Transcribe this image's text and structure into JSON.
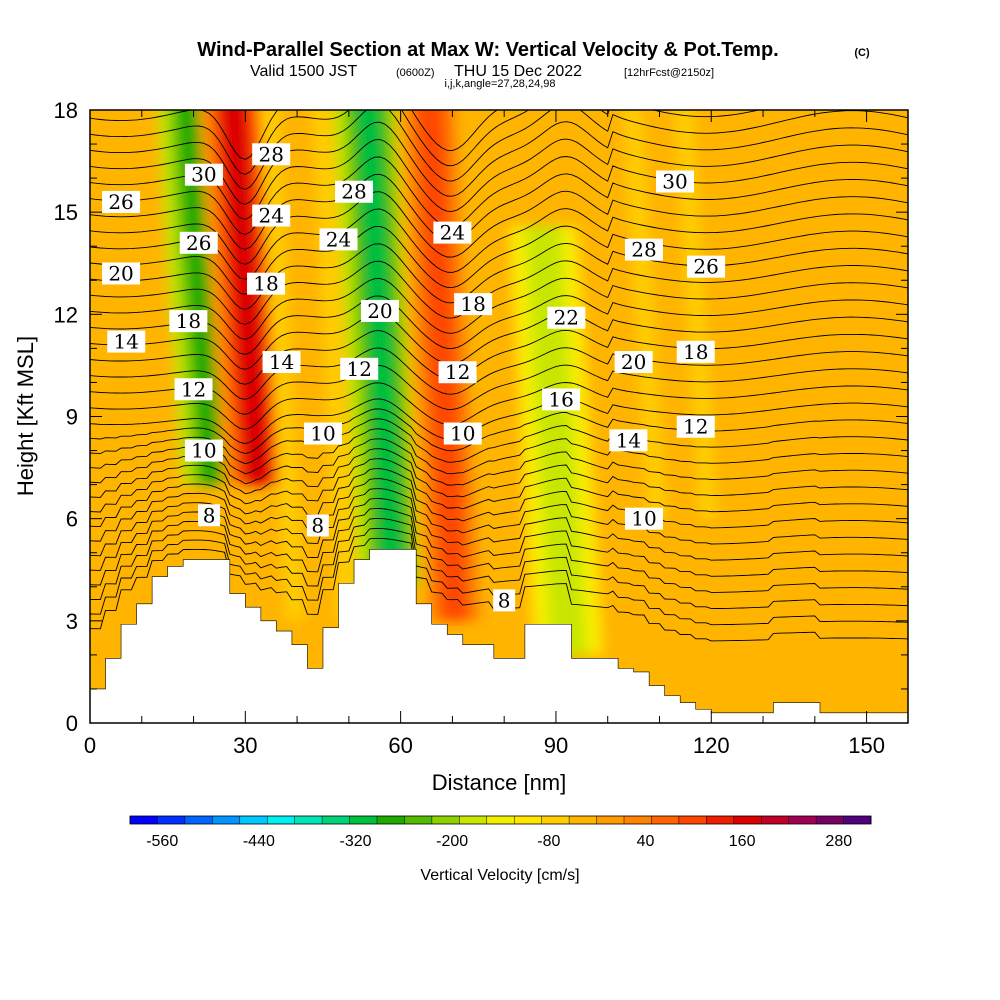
{
  "header": {
    "title": "Wind-Parallel Section at Max W: Vertical Velocity & Pot.Temp.",
    "copyright": "(C)",
    "valid_prefix": "Valid 1500 JST",
    "valid_utc": "(0600Z)",
    "valid_suffix": "THU 15 Dec 2022",
    "forecast": "[12hrFcst@2150z]",
    "indices": "i,j,k,angle=27,28,24,98"
  },
  "colors": {
    "terrain": "#ffffff",
    "background_fill": "#ffb400",
    "contour_line": "#000000",
    "palette": [
      "#0000ff",
      "#0030ff",
      "#0064ff",
      "#0096ff",
      "#00c8ff",
      "#00f0f0",
      "#00e6b4",
      "#00d278",
      "#00c040",
      "#1eaa00",
      "#50bb00",
      "#8cd200",
      "#c8e600",
      "#f0f000",
      "#ffe600",
      "#ffcd00",
      "#ffb400",
      "#ff9b00",
      "#ff8200",
      "#ff6400",
      "#ff4600",
      "#f01e00",
      "#dc0000",
      "#c00028",
      "#a00050",
      "#780064",
      "#50007d"
    ]
  },
  "chart_data": {
    "type": "heatmap",
    "title": "Wind-Parallel Section at Max W: Vertical Velocity & Pot.Temp.",
    "xlabel": "Distance [nm]",
    "ylabel": "Height [Kft MSL]",
    "xlim": [
      0,
      158
    ],
    "ylim": [
      0,
      18
    ],
    "x_ticks": [
      0,
      30,
      60,
      90,
      120,
      150
    ],
    "y_ticks": [
      0,
      3,
      6,
      9,
      12,
      15,
      18
    ],
    "colorbar": {
      "label": "Vertical Velocity [cm/s]",
      "min": -600,
      "max": 320,
      "step": 40,
      "tick_values": [
        -560,
        -440,
        -320,
        -200,
        -80,
        40,
        160,
        280
      ],
      "tick_labels": [
        "-560",
        "-440",
        "-320",
        "-200",
        "-80",
        "40",
        "160",
        "280"
      ]
    },
    "vertical_velocity_features": [
      {
        "x": 22,
        "height_range": [
          7,
          18
        ],
        "w": -240
      },
      {
        "x": 30,
        "height_range": [
          7,
          18
        ],
        "w": 300
      },
      {
        "x": 42,
        "height_range": [
          3,
          18
        ],
        "w": 60
      },
      {
        "x": 56,
        "height_range": [
          4,
          18
        ],
        "w": -260
      },
      {
        "x": 68,
        "height_range": [
          3,
          18
        ],
        "w": 200
      },
      {
        "x": 90,
        "height_range": [
          2,
          14
        ],
        "w": -100
      },
      {
        "x": 112,
        "height_range": [
          6,
          18
        ],
        "w": 60
      }
    ],
    "terrain": {
      "x": [
        0,
        3,
        6,
        9,
        12,
        15,
        18,
        21,
        24,
        27,
        30,
        33,
        36,
        39,
        42,
        45,
        48,
        51,
        54,
        57,
        60,
        63,
        66,
        69,
        72,
        75,
        78,
        81,
        84,
        87,
        90,
        93,
        96,
        99,
        102,
        105,
        108,
        111,
        114,
        117,
        120,
        123,
        126,
        129,
        132,
        135,
        138,
        141,
        144,
        147,
        150,
        153,
        156,
        158
      ],
      "height": [
        1.0,
        1.9,
        2.9,
        3.5,
        4.3,
        4.6,
        4.8,
        4.8,
        4.8,
        3.8,
        3.4,
        3.0,
        2.7,
        2.3,
        1.6,
        2.8,
        4.1,
        4.8,
        5.1,
        5.1,
        5.1,
        3.5,
        2.9,
        2.6,
        2.3,
        2.3,
        1.9,
        1.9,
        2.9,
        2.9,
        2.9,
        1.9,
        1.9,
        1.9,
        1.6,
        1.5,
        1.1,
        0.8,
        0.6,
        0.4,
        0.3,
        0.3,
        0.3,
        0.3,
        0.6,
        0.6,
        0.6,
        0.3,
        0.3,
        0.3,
        0.3,
        0.3,
        0.3,
        0.3
      ]
    },
    "potential_temperature_contours": {
      "units": "deg",
      "labels": [
        {
          "text": "30",
          "x": 22,
          "y": 16.1
        },
        {
          "text": "28",
          "x": 35,
          "y": 16.7
        },
        {
          "text": "26",
          "x": 6,
          "y": 15.3
        },
        {
          "text": "24",
          "x": 35,
          "y": 14.9
        },
        {
          "text": "28",
          "x": 51,
          "y": 15.6
        },
        {
          "text": "24",
          "x": 48,
          "y": 14.2
        },
        {
          "text": "26",
          "x": 21,
          "y": 14.1
        },
        {
          "text": "20",
          "x": 6,
          "y": 13.2
        },
        {
          "text": "18",
          "x": 34,
          "y": 12.9
        },
        {
          "text": "20",
          "x": 56,
          "y": 12.1
        },
        {
          "text": "24",
          "x": 70,
          "y": 14.4
        },
        {
          "text": "30",
          "x": 113,
          "y": 15.9
        },
        {
          "text": "28",
          "x": 107,
          "y": 13.9
        },
        {
          "text": "26",
          "x": 119,
          "y": 13.4
        },
        {
          "text": "22",
          "x": 92,
          "y": 11.9
        },
        {
          "text": "18",
          "x": 74,
          "y": 12.3
        },
        {
          "text": "18",
          "x": 117,
          "y": 10.9
        },
        {
          "text": "14",
          "x": 7,
          "y": 11.2
        },
        {
          "text": "18",
          "x": 19,
          "y": 11.8
        },
        {
          "text": "14",
          "x": 37,
          "y": 10.6
        },
        {
          "text": "12",
          "x": 52,
          "y": 10.4
        },
        {
          "text": "12",
          "x": 71,
          "y": 10.3
        },
        {
          "text": "20",
          "x": 105,
          "y": 10.6
        },
        {
          "text": "12",
          "x": 20,
          "y": 9.8
        },
        {
          "text": "16",
          "x": 91,
          "y": 9.5
        },
        {
          "text": "12",
          "x": 117,
          "y": 8.7
        },
        {
          "text": "14",
          "x": 104,
          "y": 8.3
        },
        {
          "text": "10",
          "x": 22,
          "y": 8.0
        },
        {
          "text": "10",
          "x": 45,
          "y": 8.5
        },
        {
          "text": "10",
          "x": 72,
          "y": 8.5
        },
        {
          "text": "8",
          "x": 23,
          "y": 6.1
        },
        {
          "text": "8",
          "x": 44,
          "y": 5.8
        },
        {
          "text": "10",
          "x": 107,
          "y": 6.0
        },
        {
          "text": "8",
          "x": 80,
          "y": 3.6
        }
      ]
    }
  }
}
